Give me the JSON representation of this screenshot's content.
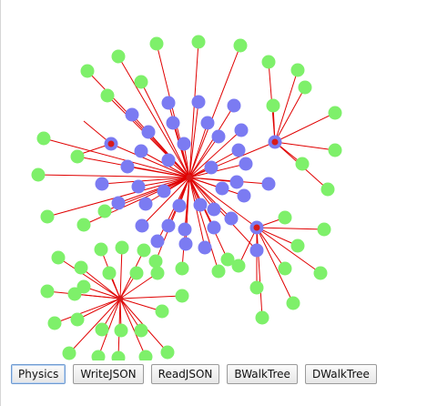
{
  "toolbar": {
    "buttons": [
      {
        "key": "physics",
        "label": "Physics"
      },
      {
        "key": "writejson",
        "label": "WriteJSON"
      },
      {
        "key": "readjson",
        "label": "ReadJSON"
      },
      {
        "key": "bwalktree",
        "label": "BWalkTree"
      },
      {
        "key": "dwalktree",
        "label": "DWalkTree"
      }
    ],
    "active": "physics"
  },
  "colors": {
    "edge": "#e00000",
    "hub": "#d81b1b",
    "inner_node": "#7b7bf2",
    "outer_node": "#7ef06a"
  }
}
